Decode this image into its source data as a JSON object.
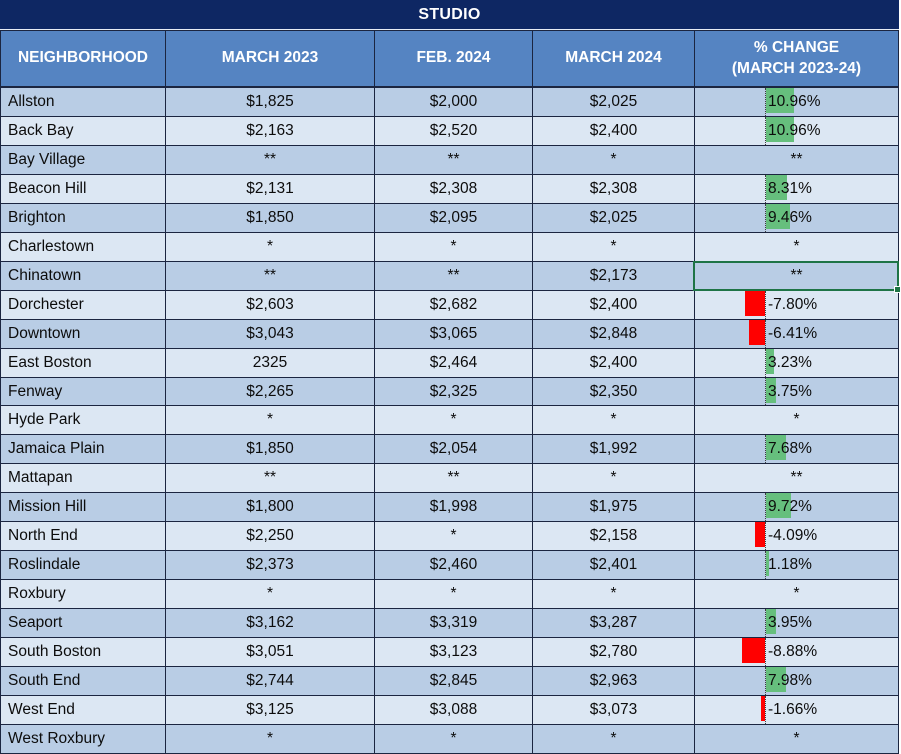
{
  "title": "STUDIO",
  "columns": [
    "NEIGHBORHOOD",
    "MARCH 2023",
    "FEB. 2024",
    "MARCH 2024"
  ],
  "pct_header": {
    "line1": "% CHANGE",
    "line2": "(MARCH 2023-24)"
  },
  "selection": {
    "neighborhood": "Chinatown",
    "column": "pct_change"
  },
  "colors": {
    "title_bg": "#0e2763",
    "header_bg": "#5584c2",
    "row_dark": "#b9cde5",
    "row_light": "#dce7f3",
    "grid": "#1b2540",
    "bar_pos": "#66bf7d",
    "bar_neg": "#ff0000",
    "sel": "#1e7446"
  },
  "rows": [
    {
      "neighborhood": "Allston",
      "march_2023": "$1,825",
      "feb_2024": "$2,000",
      "march_2024": "$2,025",
      "pct_label": "10.96%",
      "pct_value": 10.96
    },
    {
      "neighborhood": "Back Bay",
      "march_2023": "$2,163",
      "feb_2024": "$2,520",
      "march_2024": "$2,400",
      "pct_label": "10.96%",
      "pct_value": 10.96
    },
    {
      "neighborhood": "Bay Village",
      "march_2023": "**",
      "feb_2024": "**",
      "march_2024": "*",
      "pct_label": "**",
      "pct_value": null
    },
    {
      "neighborhood": "Beacon Hill",
      "march_2023": "$2,131",
      "feb_2024": "$2,308",
      "march_2024": "$2,308",
      "pct_label": "8.31%",
      "pct_value": 8.31
    },
    {
      "neighborhood": "Brighton",
      "march_2023": "$1,850",
      "feb_2024": "$2,095",
      "march_2024": "$2,025",
      "pct_label": "9.46%",
      "pct_value": 9.46
    },
    {
      "neighborhood": "Charlestown",
      "march_2023": "*",
      "feb_2024": "*",
      "march_2024": "*",
      "pct_label": "*",
      "pct_value": null
    },
    {
      "neighborhood": "Chinatown",
      "march_2023": "**",
      "feb_2024": "**",
      "march_2024": "$2,173",
      "pct_label": "**",
      "pct_value": null
    },
    {
      "neighborhood": "Dorchester",
      "march_2023": "$2,603",
      "feb_2024": "$2,682",
      "march_2024": "$2,400",
      "pct_label": "-7.80%",
      "pct_value": -7.8
    },
    {
      "neighborhood": "Downtown",
      "march_2023": "$3,043",
      "feb_2024": "$3,065",
      "march_2024": "$2,848",
      "pct_label": "-6.41%",
      "pct_value": -6.41
    },
    {
      "neighborhood": "East Boston",
      "march_2023": "2325",
      "feb_2024": "$2,464",
      "march_2024": "$2,400",
      "pct_label": "3.23%",
      "pct_value": 3.23
    },
    {
      "neighborhood": "Fenway",
      "march_2023": "$2,265",
      "feb_2024": "$2,325",
      "march_2024": "$2,350",
      "pct_label": "3.75%",
      "pct_value": 3.75
    },
    {
      "neighborhood": "Hyde Park",
      "march_2023": "*",
      "feb_2024": "*",
      "march_2024": "*",
      "pct_label": "*",
      "pct_value": null
    },
    {
      "neighborhood": "Jamaica Plain",
      "march_2023": "$1,850",
      "feb_2024": "$2,054",
      "march_2024": "$1,992",
      "pct_label": "7.68%",
      "pct_value": 7.68
    },
    {
      "neighborhood": "Mattapan",
      "march_2023": "**",
      "feb_2024": "**",
      "march_2024": "*",
      "pct_label": "**",
      "pct_value": null
    },
    {
      "neighborhood": "Mission Hill",
      "march_2023": "$1,800",
      "feb_2024": "$1,998",
      "march_2024": "$1,975",
      "pct_label": "9.72%",
      "pct_value": 9.72
    },
    {
      "neighborhood": "North End",
      "march_2023": "$2,250",
      "feb_2024": "*",
      "march_2024": "$2,158",
      "pct_label": "-4.09%",
      "pct_value": -4.09
    },
    {
      "neighborhood": "Roslindale",
      "march_2023": "$2,373",
      "feb_2024": "$2,460",
      "march_2024": "$2,401",
      "pct_label": "1.18%",
      "pct_value": 1.18
    },
    {
      "neighborhood": "Roxbury",
      "march_2023": "*",
      "feb_2024": "*",
      "march_2024": "*",
      "pct_label": "*",
      "pct_value": null
    },
    {
      "neighborhood": "Seaport",
      "march_2023": "$3,162",
      "feb_2024": "$3,319",
      "march_2024": "$3,287",
      "pct_label": "3.95%",
      "pct_value": 3.95
    },
    {
      "neighborhood": "South Boston",
      "march_2023": "$3,051",
      "feb_2024": "$3,123",
      "march_2024": "$2,780",
      "pct_label": "-8.88%",
      "pct_value": -8.88
    },
    {
      "neighborhood": "South End",
      "march_2023": "$2,744",
      "feb_2024": "$2,845",
      "march_2024": "$2,963",
      "pct_label": "7.98%",
      "pct_value": 7.98
    },
    {
      "neighborhood": "West End",
      "march_2023": "$3,125",
      "feb_2024": "$3,088",
      "march_2024": "$3,073",
      "pct_label": "-1.66%",
      "pct_value": -1.66
    },
    {
      "neighborhood": "West Roxbury",
      "march_2023": "*",
      "feb_2024": "*",
      "march_2024": "*",
      "pct_label": "*",
      "pct_value": null
    }
  ]
}
